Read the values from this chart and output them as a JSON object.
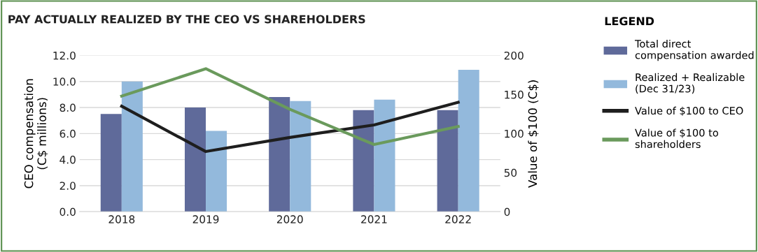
{
  "chart_data": {
    "type": "bar",
    "title": "PAY ACTUALLY REALIZED BY THE CEO VS SHAREHOLDERS",
    "legend_title": "LEGEND",
    "categories": [
      "2018",
      "2019",
      "2020",
      "2021",
      "2022"
    ],
    "ylabel": "CEO compensation\n(C$ millions)",
    "y2label": "Value of $100 (C$)",
    "ylim": [
      0,
      12
    ],
    "yticks": [
      {
        "value": 0,
        "label": "0.0"
      },
      {
        "value": 2,
        "label": "2.0"
      },
      {
        "value": 4,
        "label": "4.0"
      },
      {
        "value": 6,
        "label": "6.0"
      },
      {
        "value": 8,
        "label": "8.0"
      },
      {
        "value": 10,
        "label": "10.0"
      },
      {
        "value": 12,
        "label": "12.0"
      }
    ],
    "y2lim": [
      0,
      200
    ],
    "y2ticks": [
      0,
      50,
      100,
      150,
      200
    ],
    "grid": "y",
    "legend": "right",
    "series": [
      {
        "name": "Total direct compensation awarded",
        "color": "#5f6a9a",
        "values": [
          7.5,
          8.0,
          8.8,
          7.8,
          7.8
        ]
      },
      {
        "name": "Realized + Realizable (Dec 31/23)",
        "color": "#93b9dc",
        "values": [
          10.0,
          6.2,
          8.5,
          8.6,
          10.9
        ]
      },
      {
        "name": "Value of $100 to CEO",
        "type": "line",
        "axis": "y2",
        "color": "#1e1e1e",
        "values": [
          135,
          77,
          95,
          111,
          140
        ]
      },
      {
        "name": "Value of $100 to shareholders",
        "type": "line",
        "axis": "y2",
        "color": "#6a9a5c",
        "values": [
          148,
          183,
          131,
          86,
          109
        ]
      }
    ]
  }
}
